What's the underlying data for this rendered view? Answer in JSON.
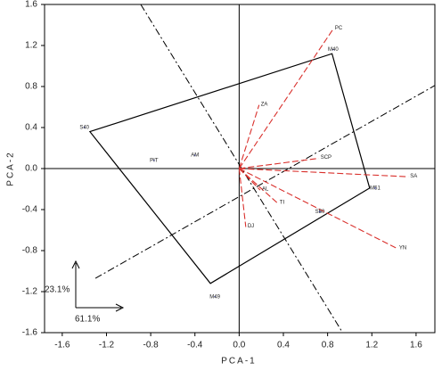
{
  "chart_data": {
    "type": "biplot",
    "xlabel": "PCA-1",
    "ylabel": "PCA-2",
    "xlim": [
      -1.76,
      1.77
    ],
    "ylim": [
      -1.6,
      1.6
    ],
    "xticks": [
      -1.6,
      -1.2,
      -0.8,
      -0.4,
      {
        "value": 0,
        "label": "0.0"
      },
      0.4,
      0.8,
      1.2,
      1.6
    ],
    "yticks": [
      -1.6,
      -1.2,
      -0.8,
      -0.4,
      {
        "value": 0,
        "label": "0.0"
      },
      0.4,
      0.8,
      1.2,
      1.6
    ],
    "points": {
      "color": "#1f2a9c",
      "labels": [
        "S40",
        "M40",
        "M51",
        "S50",
        "M49",
        "PIT",
        "AM"
      ],
      "x": [
        -1.4,
        0.85,
        1.23,
        0.73,
        -0.22,
        -0.77,
        -0.4
      ],
      "y": [
        0.4,
        1.16,
        -0.19,
        -0.42,
        -1.25,
        0.08,
        0.13
      ]
    },
    "polygon": {
      "color": "#000000",
      "x": [
        -1.35,
        0.84,
        1.18,
        -0.26
      ],
      "y": [
        0.36,
        1.12,
        -0.19,
        -1.12
      ]
    },
    "vectors": {
      "color": "#d9302c",
      "labels": [
        "PC",
        "ZA",
        "SCP",
        "SA",
        "YN",
        "TI",
        "AL",
        "DJ"
      ],
      "x": [
        0.85,
        0.18,
        0.72,
        1.53,
        1.43,
        0.35,
        0.19,
        0.06
      ],
      "y": [
        1.36,
        0.62,
        0.1,
        -0.08,
        -0.78,
        -0.34,
        -0.21,
        -0.57
      ]
    },
    "lines": [
      {
        "x": [
          -0.89,
          0.93
        ],
        "y": [
          1.6,
          -1.59
        ]
      },
      {
        "x": [
          -1.3,
          1.77
        ],
        "y": [
          -1.07,
          0.81
        ]
      }
    ],
    "annotations": [
      "23.1%",
      "61.1%"
    ]
  }
}
